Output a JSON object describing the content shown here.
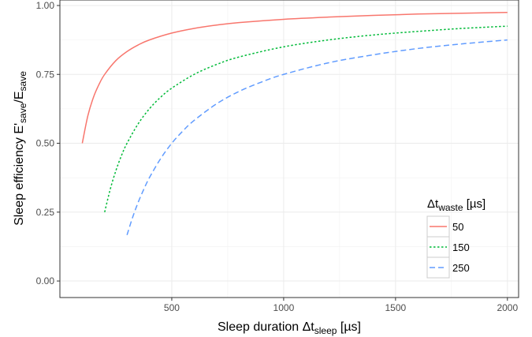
{
  "chart_data": {
    "type": "line",
    "xlabel": {
      "prefix": "Sleep duration Δt",
      "subscript": "sleep",
      "suffix": " [µs]"
    },
    "ylabel": {
      "prefix": "Sleep efficiency E'",
      "subscript1": "save",
      "middle": "/E",
      "subscript2": "save"
    },
    "xlim": [
      0,
      2050
    ],
    "ylim": [
      -0.06,
      1.02
    ],
    "x_ticks": [
      500,
      1000,
      1500,
      2000
    ],
    "x_tick_labels": [
      "500",
      "1000",
      "1500",
      "2000"
    ],
    "y_ticks": [
      0,
      0.25,
      0.5,
      0.75,
      1.0
    ],
    "y_tick_labels": [
      "0.00",
      "0.25",
      "0.50",
      "0.75",
      "1.00"
    ],
    "grid": true,
    "legend": {
      "title_prefix": "Δt",
      "title_subscript": "waste",
      "title_suffix": " [µs]",
      "placement": "bottom-right"
    },
    "series": [
      {
        "name": "50",
        "color": "#F8766D",
        "dash": "solid",
        "x": [
          100,
          125,
          150,
          175,
          200,
          250,
          300,
          350,
          400,
          500,
          600,
          700,
          800,
          1000,
          1200,
          1400,
          1600,
          1800,
          2000
        ],
        "y": [
          0.5,
          0.6,
          0.667,
          0.714,
          0.75,
          0.8,
          0.833,
          0.857,
          0.875,
          0.9,
          0.917,
          0.929,
          0.938,
          0.95,
          0.958,
          0.964,
          0.969,
          0.972,
          0.975
        ]
      },
      {
        "name": "150",
        "color": "#00BA38",
        "dash": "dotted",
        "x": [
          200,
          225,
          250,
          275,
          300,
          350,
          400,
          450,
          500,
          600,
          700,
          800,
          1000,
          1200,
          1400,
          1600,
          1800,
          2000
        ],
        "y": [
          0.25,
          0.333,
          0.4,
          0.455,
          0.5,
          0.571,
          0.625,
          0.667,
          0.7,
          0.75,
          0.786,
          0.813,
          0.85,
          0.875,
          0.893,
          0.906,
          0.917,
          0.925
        ]
      },
      {
        "name": "250",
        "color": "#619CFF",
        "dash": "dashed",
        "x": [
          300,
          325,
          350,
          375,
          400,
          450,
          500,
          550,
          600,
          700,
          800,
          900,
          1000,
          1200,
          1400,
          1600,
          1800,
          2000
        ],
        "y": [
          0.167,
          0.231,
          0.286,
          0.333,
          0.375,
          0.444,
          0.5,
          0.545,
          0.583,
          0.643,
          0.688,
          0.722,
          0.75,
          0.792,
          0.821,
          0.844,
          0.861,
          0.875
        ]
      }
    ]
  }
}
